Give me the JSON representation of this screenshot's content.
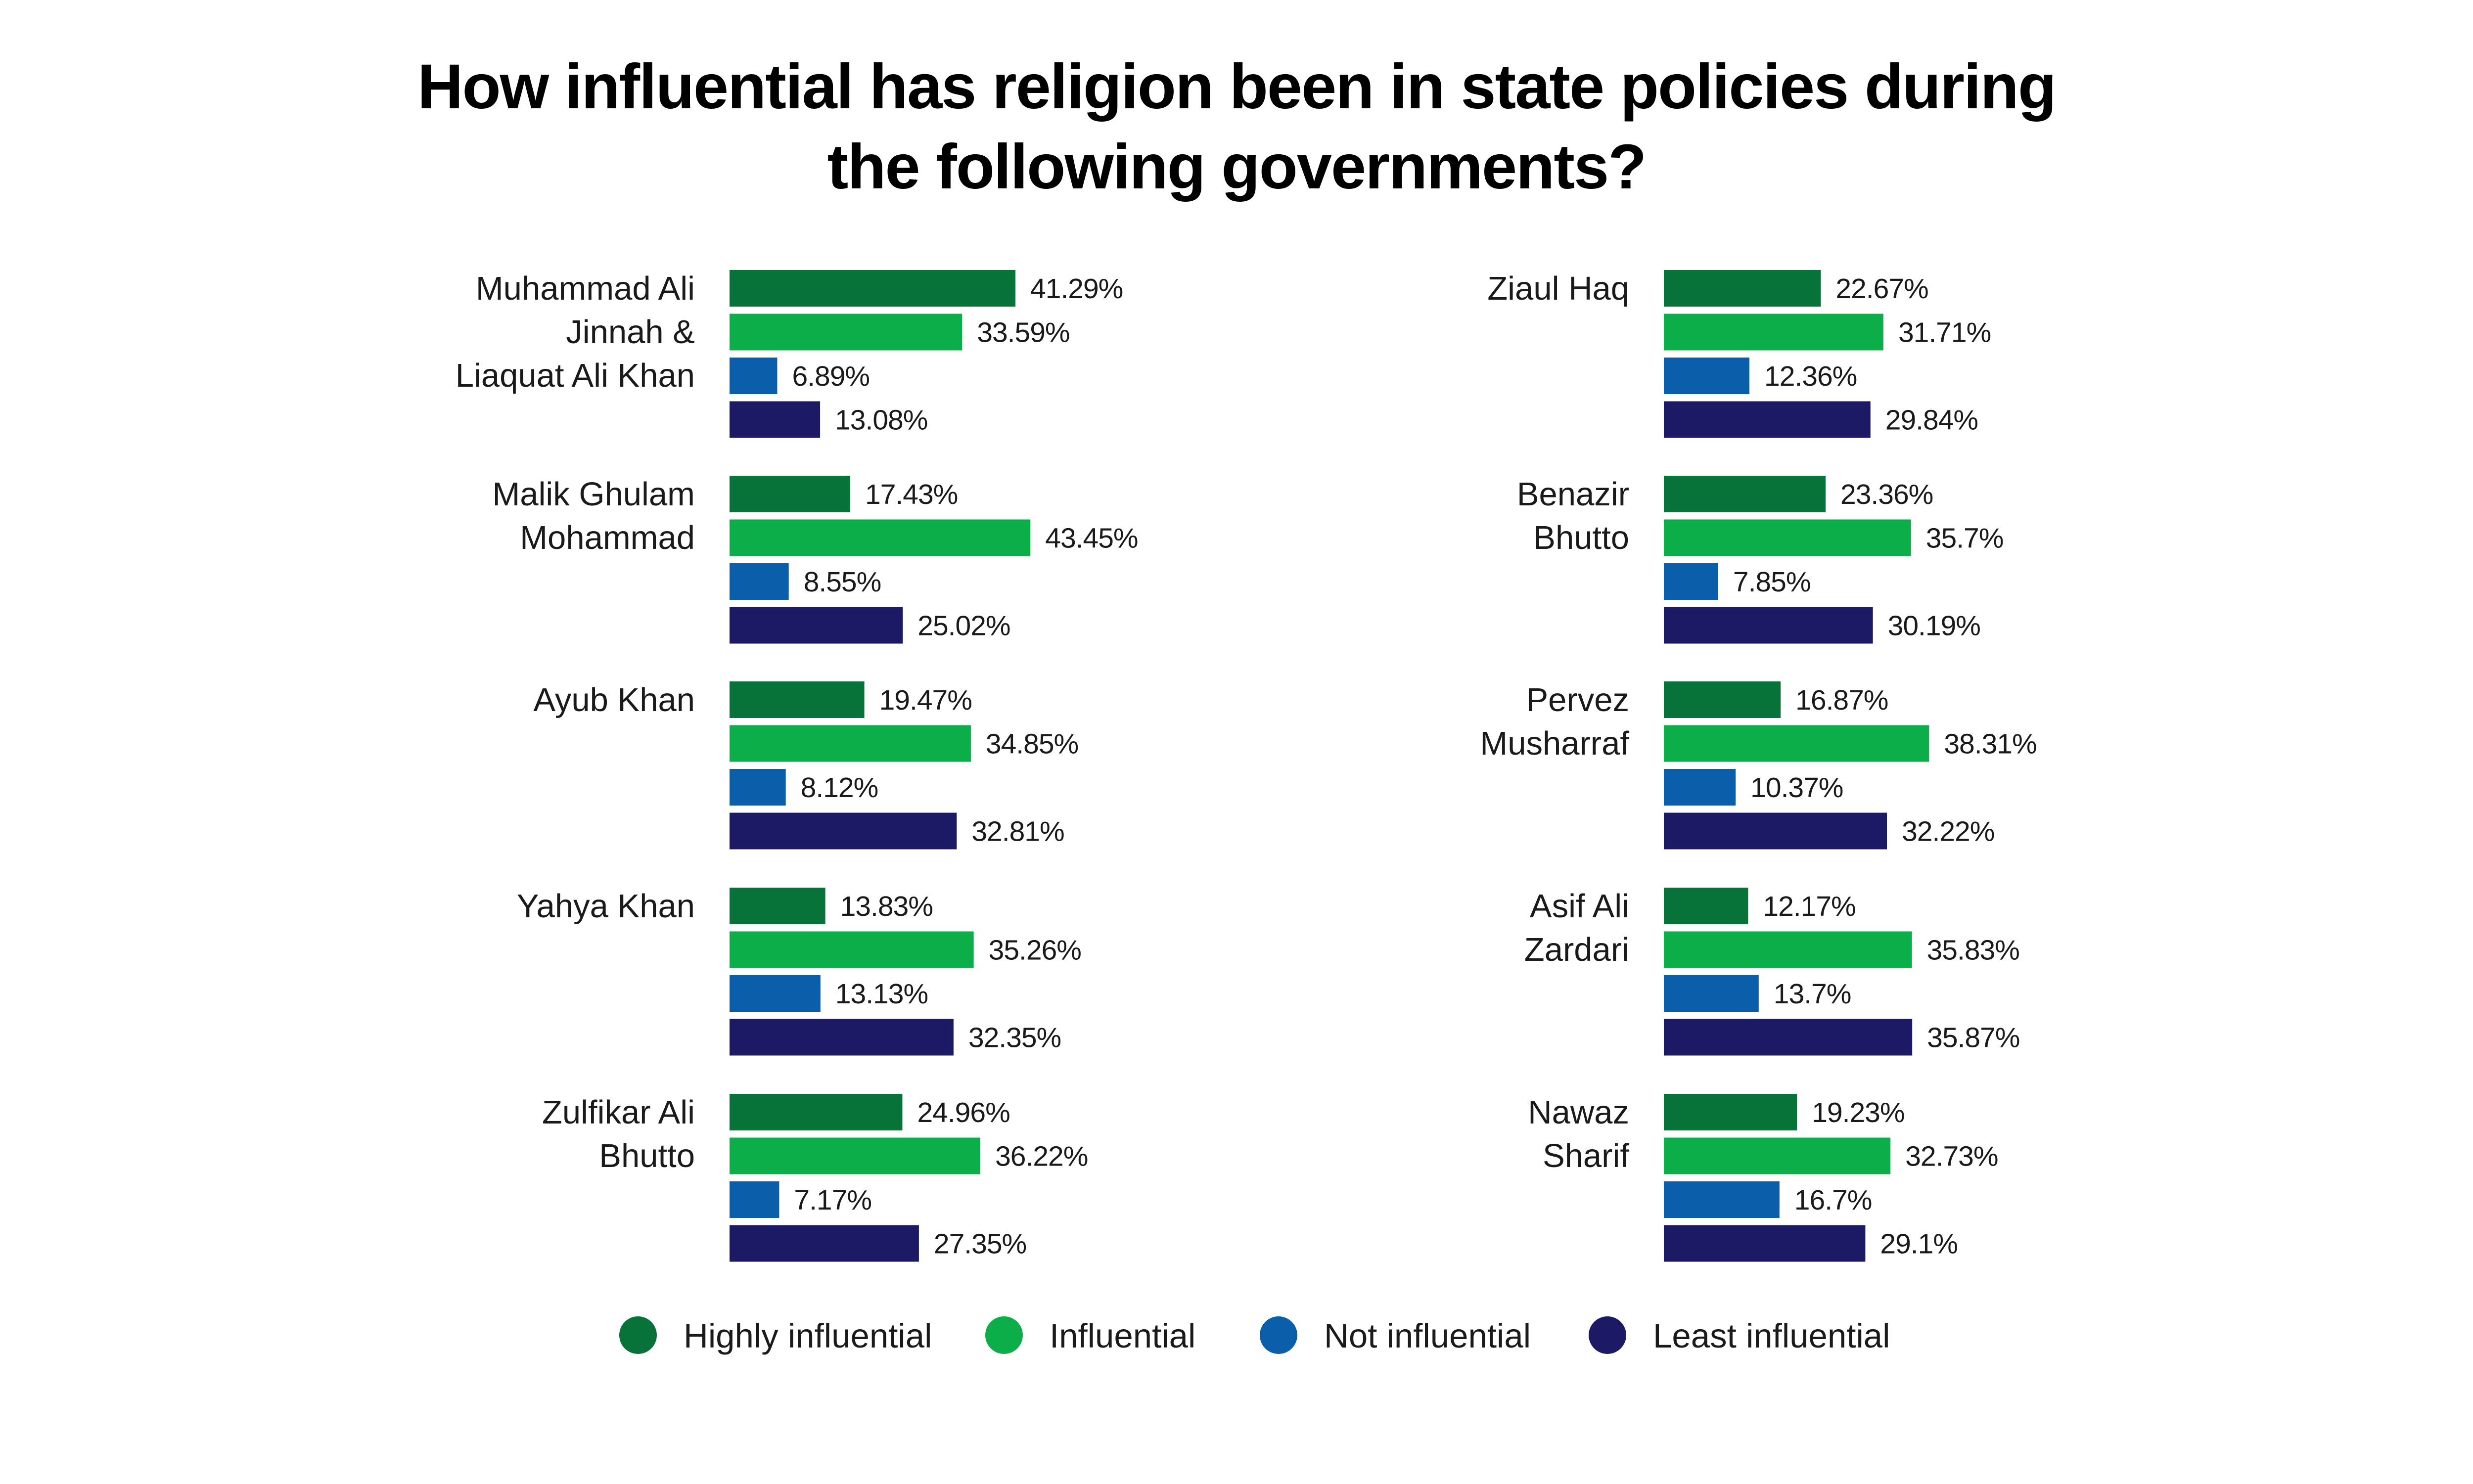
{
  "chart_data": {
    "type": "bar",
    "orientation": "horizontal",
    "title_lines": [
      "How influential has religion been in state policies during",
      "the following governments?"
    ],
    "xlim": [
      0,
      100
    ],
    "grid": false,
    "legend_position": "bottom",
    "series": [
      {
        "name": "Highly influential",
        "color": "#077339"
      },
      {
        "name": "Influential",
        "color": "#0cae4a"
      },
      {
        "name": "Not influential",
        "color": "#0a5eaa"
      },
      {
        "name": "Least influential",
        "color": "#1c1a64"
      }
    ],
    "groups": [
      {
        "label_lines": [
          "Muhammad Ali",
          "Jinnah &",
          "Liaquat Ali Khan"
        ],
        "values": [
          41.29,
          33.59,
          6.89,
          13.08
        ],
        "value_labels": [
          "41.29%",
          "33.59%",
          "6.89%",
          "13.08%"
        ]
      },
      {
        "label_lines": [
          "Malik Ghulam",
          "Mohammad"
        ],
        "values": [
          17.43,
          43.45,
          8.55,
          25.02
        ],
        "value_labels": [
          "17.43%",
          "43.45%",
          "8.55%",
          "25.02%"
        ]
      },
      {
        "label_lines": [
          "Ayub Khan"
        ],
        "values": [
          19.47,
          34.85,
          8.12,
          32.81
        ],
        "value_labels": [
          "19.47%",
          "34.85%",
          "8.12%",
          "32.81%"
        ]
      },
      {
        "label_lines": [
          "Yahya Khan"
        ],
        "values": [
          13.83,
          35.26,
          13.13,
          32.35
        ],
        "value_labels": [
          "13.83%",
          "35.26%",
          "13.13%",
          "32.35%"
        ]
      },
      {
        "label_lines": [
          "Zulfikar Ali",
          "Bhutto"
        ],
        "values": [
          24.96,
          36.22,
          7.17,
          27.35
        ],
        "value_labels": [
          "24.96%",
          "36.22%",
          "7.17%",
          "27.35%"
        ]
      },
      {
        "label_lines": [
          "Ziaul Haq"
        ],
        "values": [
          22.67,
          31.71,
          12.36,
          29.84
        ],
        "value_labels": [
          "22.67%",
          "31.71%",
          "12.36%",
          "29.84%"
        ]
      },
      {
        "label_lines": [
          "Benazir",
          "Bhutto"
        ],
        "values": [
          23.36,
          35.7,
          7.85,
          30.19
        ],
        "value_labels": [
          "23.36%",
          "35.7%",
          "7.85%",
          "30.19%"
        ]
      },
      {
        "label_lines": [
          "Pervez",
          "Musharraf"
        ],
        "values": [
          16.87,
          38.31,
          10.37,
          32.22
        ],
        "value_labels": [
          "16.87%",
          "38.31%",
          "10.37%",
          "32.22%"
        ]
      },
      {
        "label_lines": [
          "Asif Ali",
          "Zardari"
        ],
        "values": [
          12.17,
          35.83,
          13.7,
          35.87
        ],
        "value_labels": [
          "12.17%",
          "35.83%",
          "13.7%",
          "35.87%"
        ]
      },
      {
        "label_lines": [
          "Nawaz",
          "Sharif"
        ],
        "values": [
          19.23,
          32.73,
          16.7,
          29.1
        ],
        "value_labels": [
          "19.23%",
          "32.73%",
          "16.7%",
          "29.1%"
        ]
      }
    ]
  }
}
